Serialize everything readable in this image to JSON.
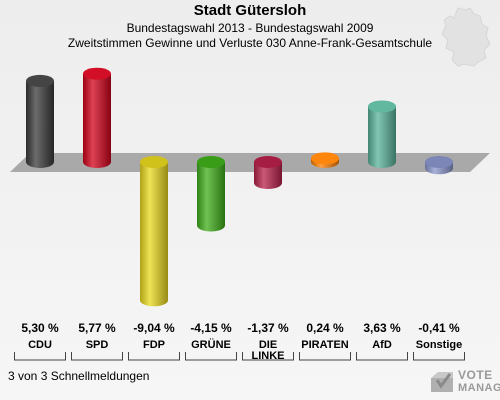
{
  "header": {
    "title": "Stadt Gütersloh",
    "subtitle1": "Bundestagswahl 2013 - Bundestagswahl 2009",
    "subtitle2": "Zweitstimmen Gewinne und Verluste 030 Anne-Frank-Gesamtschule"
  },
  "footer": {
    "text": "3 von 3 Schnellmeldungen"
  },
  "logo": {
    "line1": "VOTE",
    "line2": "MANAGER"
  },
  "chart_data": {
    "type": "bar",
    "categories": [
      "CDU",
      "SPD",
      "FDP",
      "GRÜNE",
      "DIE LINKE",
      "PIRATEN",
      "AfD",
      "Sonstige"
    ],
    "values": [
      5.3,
      5.77,
      -9.04,
      -4.15,
      -1.37,
      0.24,
      3.63,
      -0.41
    ],
    "value_labels": [
      "5,30 %",
      "5,77 %",
      "-9,04 %",
      "-4,15 %",
      "-1,37 %",
      "0,24 %",
      "3,63 %",
      "-0,41 %"
    ],
    "colors": [
      "#3a3a3a",
      "#d0021b",
      "#e8d81e",
      "#3fae1a",
      "#b8204a",
      "#ff8000",
      "#5ab39a",
      "#8a96cc"
    ],
    "ylim": [
      -10,
      6.5
    ]
  }
}
